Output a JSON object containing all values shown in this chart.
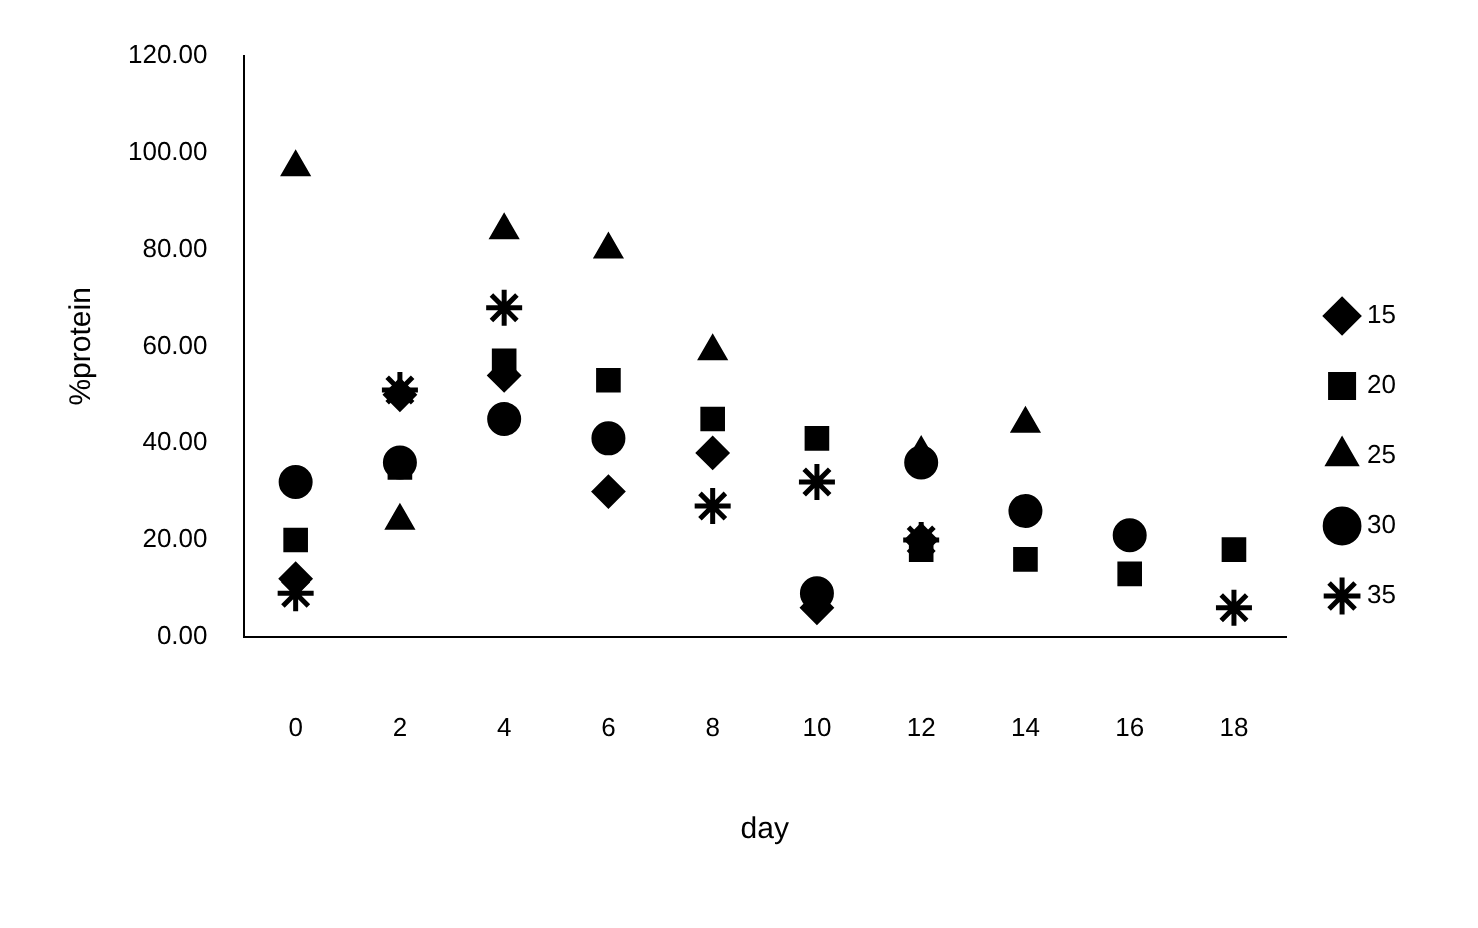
{
  "chart_data": {
    "type": "scatter",
    "xlabel": "day",
    "ylabel": "%protein",
    "categories": [
      "0",
      "2",
      "4",
      "6",
      "8",
      "10",
      "12",
      "14",
      "16",
      "18"
    ],
    "ylim": [
      0,
      120
    ],
    "yticks": [
      {
        "value": 0,
        "label": "0.00"
      },
      {
        "value": 20,
        "label": "20.00"
      },
      {
        "value": 40,
        "label": "40.00"
      },
      {
        "value": 60,
        "label": "60.00"
      },
      {
        "value": 80,
        "label": "80.00"
      },
      {
        "value": 100,
        "label": "100.00"
      },
      {
        "value": 120,
        "label": "120.00"
      }
    ],
    "grid": false,
    "legend": "right",
    "series": [
      {
        "name": "15",
        "color": "#000000",
        "marker": "diamond",
        "values": [
          12,
          50,
          54,
          30,
          38,
          6,
          20,
          null,
          null,
          null
        ]
      },
      {
        "name": "20",
        "color": "#000000",
        "marker": "square",
        "values": [
          20,
          35,
          57,
          53,
          45,
          41,
          18,
          16,
          13,
          18
        ]
      },
      {
        "name": "25",
        "color": "#000000",
        "marker": "triangle",
        "values": [
          97,
          24,
          84,
          80,
          59,
          null,
          38,
          44,
          null,
          null
        ]
      },
      {
        "name": "30",
        "color": "#000000",
        "marker": "circle",
        "values": [
          32,
          36,
          45,
          41,
          null,
          9,
          36,
          26,
          21,
          null
        ]
      },
      {
        "name": "35",
        "color": "#000000",
        "marker": "cross",
        "values": [
          9,
          51,
          68,
          null,
          27,
          32,
          20,
          null,
          null,
          6
        ]
      }
    ]
  }
}
